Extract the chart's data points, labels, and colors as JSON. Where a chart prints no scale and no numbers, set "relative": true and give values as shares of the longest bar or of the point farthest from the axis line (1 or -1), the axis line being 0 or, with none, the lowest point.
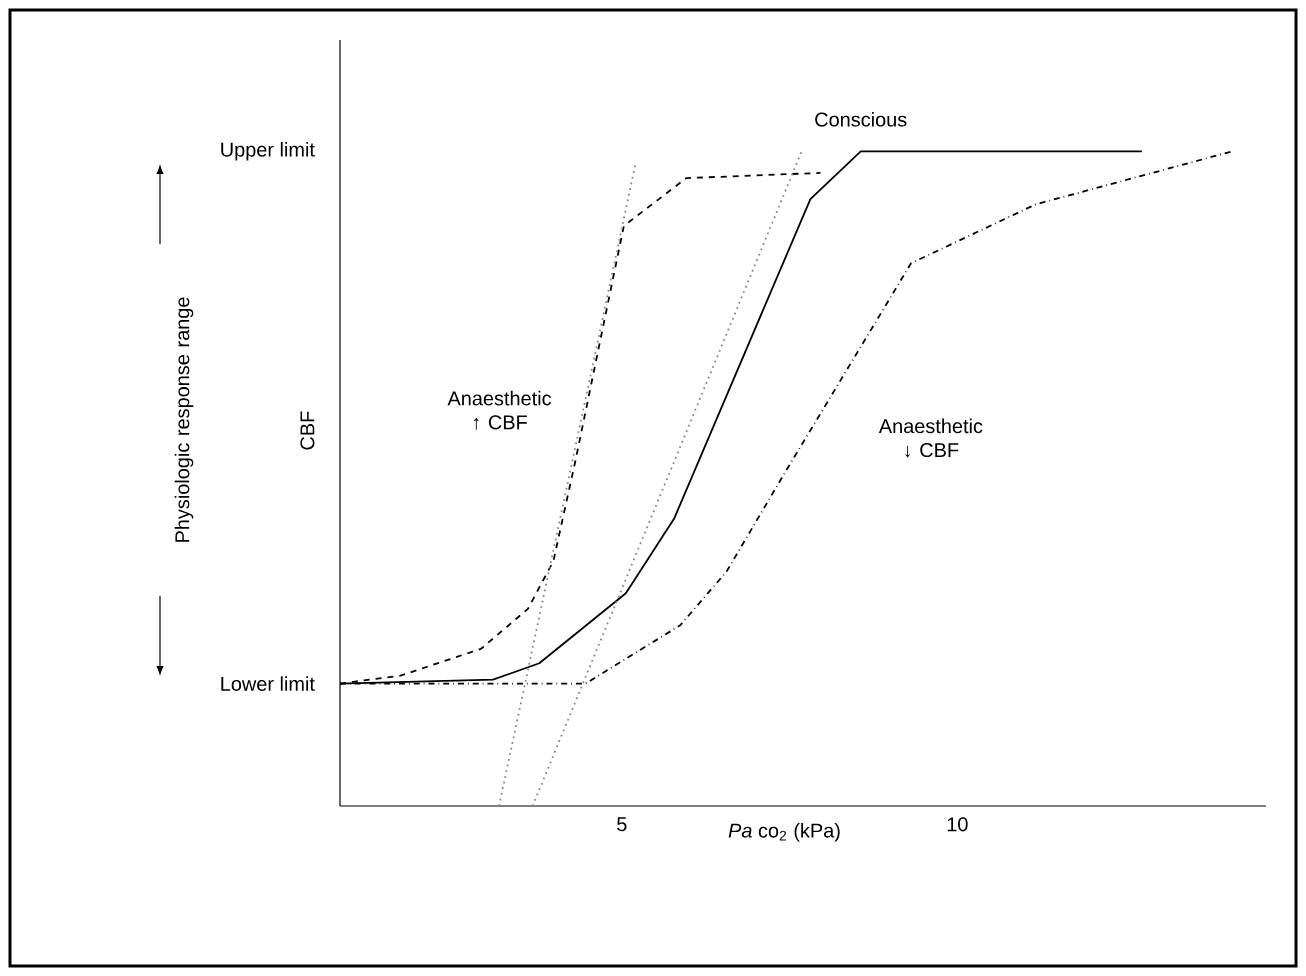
{
  "chart_data": {
    "type": "line",
    "relative": true,
    "xlabel": "*Pa* co$_{2}$ (kPa)",
    "ylabel": "CBF",
    "xlim": [
      0.8,
      14.6
    ],
    "xticks": [
      5,
      10
    ],
    "grid": false,
    "series": [
      {
        "name": "Anaesthetic ↑ CBF",
        "color": "#000000",
        "line_style": "dashed",
        "x": [
          0.8,
          1.7,
          2.9,
          3.6,
          3.98,
          4.31,
          5.03,
          5.96,
          7.96
        ],
        "values": [
          0.187,
          0.199,
          0.24,
          0.301,
          0.374,
          0.528,
          0.886,
          0.959,
          0.967
        ]
      },
      {
        "name": "Conscious",
        "color": "#000000",
        "line_style": "solid",
        "x": [
          0.8,
          3.08,
          3.77,
          5.06,
          5.78,
          7.81,
          8.56,
          12.75
        ],
        "values": [
          0.187,
          0.193,
          0.218,
          0.325,
          0.439,
          0.927,
          1,
          1
        ]
      },
      {
        "name": "Anaesthetic ↓ CBF",
        "color": "#000000",
        "line_style": "dashdot",
        "x": [
          0.8,
          4.46,
          5.87,
          6.56,
          7.4,
          9.31,
          11.17,
          14.1
        ],
        "values": [
          0.187,
          0.187,
          0.276,
          0.358,
          0.504,
          0.829,
          0.919,
          1
        ]
      },
      {
        "color": "#888888",
        "line_style": "dotted",
        "x": [
          3.67,
          7.68
        ],
        "values": [
          0,
          1
        ]
      },
      {
        "color": "#888888",
        "line_style": "dotted",
        "x": [
          3.17,
          5.21
        ],
        "values": [
          0,
          0.984
        ]
      }
    ],
    "annotations": [
      "Lower limit",
      "Upper limit",
      "Physiologic response range"
    ]
  }
}
